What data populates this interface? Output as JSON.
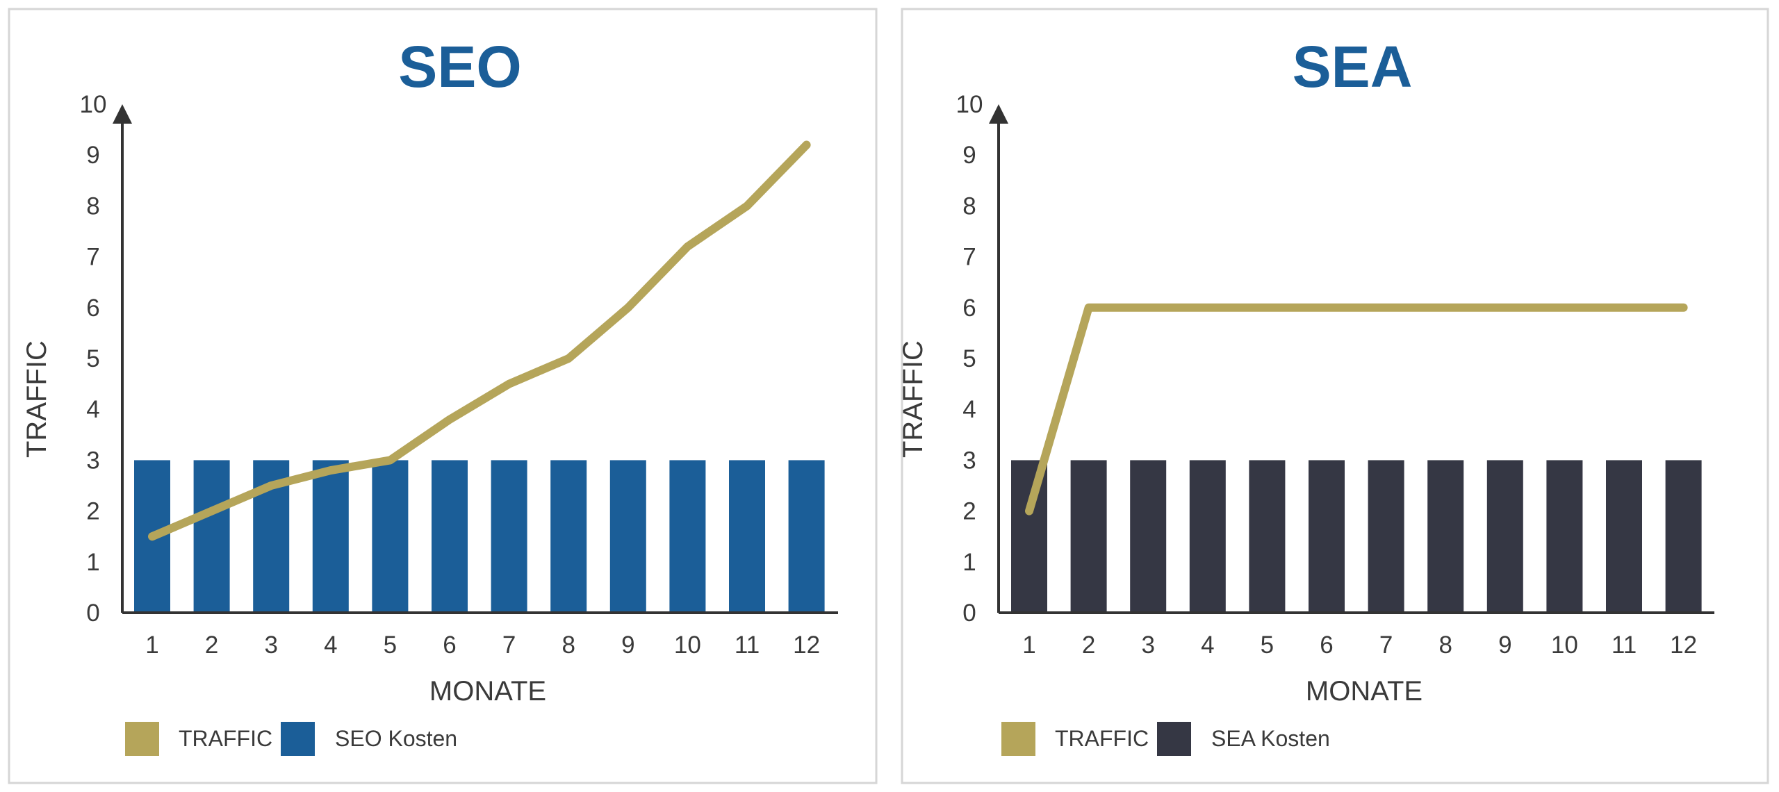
{
  "colors": {
    "traffic": "#b5a55a",
    "seo_bar": "#1b5e98",
    "sea_bar": "#353744",
    "title": "#1b5e98",
    "axis": "#333333"
  },
  "chart_data": [
    {
      "type": "bar+line",
      "title": "SEO",
      "xlabel": "MONATE",
      "ylabel": "TRAFFIC",
      "categories": [
        "1",
        "2",
        "3",
        "4",
        "5",
        "6",
        "7",
        "8",
        "9",
        "10",
        "11",
        "12"
      ],
      "yticks": [
        "0",
        "1",
        "2",
        "3",
        "4",
        "5",
        "6",
        "7",
        "8",
        "9",
        "10"
      ],
      "ylim": [
        0,
        10
      ],
      "grid": false,
      "legend_position": "bottom-left",
      "series": [
        {
          "name": "TRAFFIC",
          "type": "line",
          "color": "#b5a55a",
          "values": [
            1.5,
            2,
            2.5,
            2.8,
            3,
            3.8,
            4.5,
            5,
            6,
            7.2,
            8,
            9.2
          ]
        },
        {
          "name": "SEO Kosten",
          "type": "bar",
          "color": "#1b5e98",
          "values": [
            3,
            3,
            3,
            3,
            3,
            3,
            3,
            3,
            3,
            3,
            3,
            3
          ]
        }
      ]
    },
    {
      "type": "bar+line",
      "title": "SEA",
      "xlabel": "MONATE",
      "ylabel": "TRAFFIC",
      "categories": [
        "1",
        "2",
        "3",
        "4",
        "5",
        "6",
        "7",
        "8",
        "9",
        "10",
        "11",
        "12"
      ],
      "yticks": [
        "0",
        "1",
        "2",
        "3",
        "4",
        "5",
        "6",
        "7",
        "8",
        "9",
        "10"
      ],
      "ylim": [
        0,
        10
      ],
      "grid": false,
      "legend_position": "bottom-left",
      "series": [
        {
          "name": "TRAFFIC",
          "type": "line",
          "color": "#b5a55a",
          "values": [
            2,
            6,
            6,
            6,
            6,
            6,
            6,
            6,
            6,
            6,
            6,
            6
          ]
        },
        {
          "name": "SEA Kosten",
          "type": "bar",
          "color": "#353744",
          "values": [
            3,
            3,
            3,
            3,
            3,
            3,
            3,
            3,
            3,
            3,
            3,
            3
          ]
        }
      ]
    }
  ]
}
